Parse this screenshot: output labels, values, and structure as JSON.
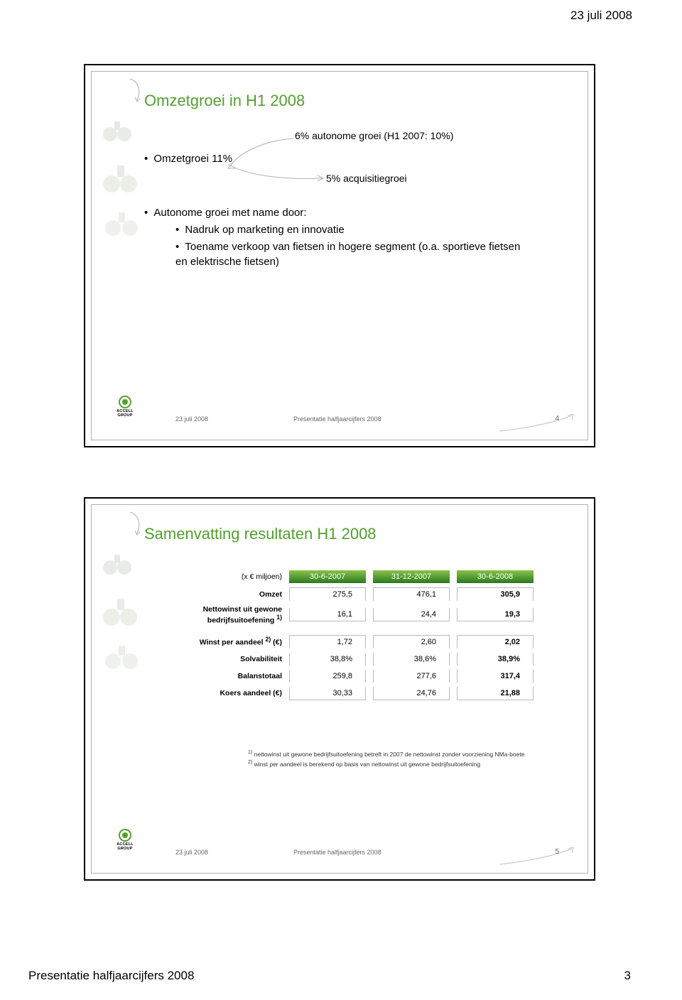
{
  "page": {
    "header_date": "23 juli 2008",
    "footer_text": "Presentatie halfjaarcijfers 2008",
    "page_number": "3"
  },
  "colors": {
    "accent_green": "#52a02e",
    "header_green_dark": "#2a7a1f",
    "header_green_light": "#8bc24a"
  },
  "slide1": {
    "title": "Omzetgroei in H1 2008",
    "bullet_main1": "Omzetgroei 11%",
    "callout_top": "6% autonome groei (H1 2007: 10%)",
    "callout_bottom": "5% acquisitiegroei",
    "bullet_main2": "Autonome groei met name door:",
    "sub1": "Nadruk op marketing en innovatie",
    "sub2": "Toename verkoop van fietsen in hogere segment (o.a. sportieve fietsen en elektrische fietsen)",
    "footer_date": "23 juli 2008",
    "footer_pres": "Presentatie halfjaarcijfers 2008",
    "slide_num": "4",
    "logo_text": "ACCELL GROUP"
  },
  "slide2": {
    "title": "Samenvatting resultaten H1 2008",
    "units_label": "(x € miljoen)",
    "headers": [
      "30-6-2007",
      "31-12-2007",
      "30-6-2008"
    ],
    "rows": [
      {
        "label": "Omzet",
        "v": [
          "275,5",
          "476,1",
          "305,9"
        ]
      },
      {
        "label_html": "Nettowinst uit gewone<br>bedrijfsuitoefening <sup>1)</sup>",
        "v": [
          "16,1",
          "24,4",
          "19,3"
        ]
      }
    ],
    "rows2": [
      {
        "label_html": "Winst per aandeel <sup>2)</sup> (€)",
        "v": [
          "1,72",
          "2,60",
          "2,02"
        ]
      },
      {
        "label": "Solvabiliteit",
        "v": [
          "38,8%",
          "38,6%",
          "38,9%"
        ]
      },
      {
        "label": "Balanstotaal",
        "v": [
          "259,8",
          "277,6",
          "317,4"
        ]
      },
      {
        "label": "Koers aandeel (€)",
        "v": [
          "30,33",
          "24,76",
          "21,88"
        ]
      }
    ],
    "footnote1": "nettowinst uit gewone bedrijfsuitoefening betreft in 2007 de nettowinst zonder voorziening NMa-boete",
    "footnote2": "winst per aandeel is berekend op basis van nettowinst uit gewone bedrijfsuitoefening",
    "footer_date": "23 juli 2008",
    "footer_pres": "Presentatie halfjaarcijfers 2008",
    "slide_num": "5",
    "logo_text": "ACCELL GROUP"
  }
}
